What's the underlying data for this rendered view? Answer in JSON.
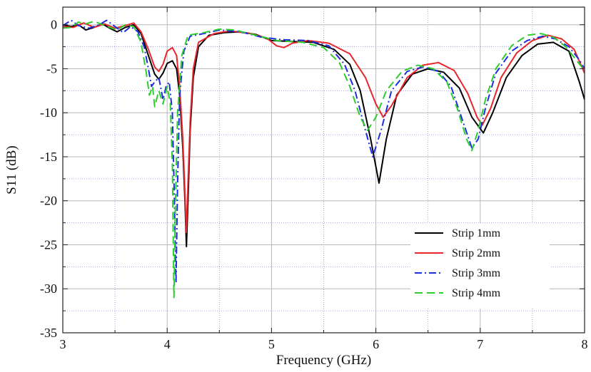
{
  "chart_data": {
    "type": "line",
    "xlabel": "Frequency (GHz)",
    "ylabel": "S11 (dB)",
    "xlim": [
      3,
      8
    ],
    "ylim": [
      -35,
      2
    ],
    "x_ticks": [
      3,
      4,
      5,
      6,
      7,
      8
    ],
    "y_ticks": [
      0,
      -5,
      -10,
      -15,
      -20,
      -25,
      -30,
      -35
    ],
    "x_minor_ticks": [
      3.5,
      4.5,
      5.5,
      6.5,
      7.5
    ],
    "y_minor_ticks": [
      -2.5,
      -7.5,
      -12.5,
      -17.5,
      -22.5,
      -27.5,
      -32.5
    ],
    "grid": true,
    "legend_position": "bottom-right",
    "series": [
      {
        "name": "Strip 1mm",
        "color": "#000000",
        "dash": "solid",
        "points": [
          [
            3.0,
            0
          ],
          [
            3.08,
            -0.2
          ],
          [
            3.15,
            0
          ],
          [
            3.22,
            -0.6
          ],
          [
            3.3,
            -0.3
          ],
          [
            3.38,
            0.1
          ],
          [
            3.45,
            -0.4
          ],
          [
            3.52,
            -0.8
          ],
          [
            3.6,
            -0.3
          ],
          [
            3.68,
            0
          ],
          [
            3.75,
            -1.0
          ],
          [
            3.82,
            -3.5
          ],
          [
            3.88,
            -5.6
          ],
          [
            3.92,
            -6.2
          ],
          [
            3.96,
            -5.5
          ],
          [
            4.0,
            -4.4
          ],
          [
            4.05,
            -4.1
          ],
          [
            4.09,
            -5.0
          ],
          [
            4.12,
            -8.0
          ],
          [
            4.15,
            -14
          ],
          [
            4.17,
            -20
          ],
          [
            4.185,
            -25.2
          ],
          [
            4.2,
            -20
          ],
          [
            4.22,
            -12
          ],
          [
            4.25,
            -6
          ],
          [
            4.3,
            -2.5
          ],
          [
            4.4,
            -1.2
          ],
          [
            4.55,
            -0.9
          ],
          [
            4.7,
            -0.8
          ],
          [
            4.85,
            -1.1
          ],
          [
            5.0,
            -1.8
          ],
          [
            5.2,
            -1.9
          ],
          [
            5.4,
            -2.0
          ],
          [
            5.6,
            -2.8
          ],
          [
            5.75,
            -4.5
          ],
          [
            5.85,
            -7.5
          ],
          [
            5.95,
            -13
          ],
          [
            6.03,
            -18.0
          ],
          [
            6.1,
            -13
          ],
          [
            6.2,
            -8.0
          ],
          [
            6.35,
            -5.6
          ],
          [
            6.5,
            -5.0
          ],
          [
            6.65,
            -5.4
          ],
          [
            6.8,
            -7.2
          ],
          [
            6.92,
            -10.5
          ],
          [
            7.03,
            -12.3
          ],
          [
            7.12,
            -10.0
          ],
          [
            7.25,
            -6.0
          ],
          [
            7.4,
            -3.5
          ],
          [
            7.55,
            -2.2
          ],
          [
            7.7,
            -2.0
          ],
          [
            7.85,
            -3.0
          ],
          [
            7.95,
            -6.5
          ],
          [
            8.0,
            -8.5
          ]
        ]
      },
      {
        "name": "Strip 2mm",
        "color": "#e8262b",
        "dash": "solid",
        "points": [
          [
            3.0,
            -0.2
          ],
          [
            3.1,
            -0.3
          ],
          [
            3.2,
            0.2
          ],
          [
            3.3,
            -0.3
          ],
          [
            3.4,
            0.1
          ],
          [
            3.5,
            -0.4
          ],
          [
            3.6,
            -0.1
          ],
          [
            3.68,
            0.2
          ],
          [
            3.75,
            -0.8
          ],
          [
            3.82,
            -2.8
          ],
          [
            3.88,
            -4.8
          ],
          [
            3.92,
            -5.3
          ],
          [
            3.96,
            -4.5
          ],
          [
            4.0,
            -3.0
          ],
          [
            4.05,
            -2.6
          ],
          [
            4.09,
            -3.5
          ],
          [
            4.12,
            -7.0
          ],
          [
            4.15,
            -13
          ],
          [
            4.17,
            -19
          ],
          [
            4.183,
            -23.6
          ],
          [
            4.2,
            -18
          ],
          [
            4.22,
            -11
          ],
          [
            4.25,
            -5
          ],
          [
            4.3,
            -2.0
          ],
          [
            4.45,
            -1.0
          ],
          [
            4.6,
            -0.7
          ],
          [
            4.8,
            -1.0
          ],
          [
            4.95,
            -1.5
          ],
          [
            5.05,
            -2.4
          ],
          [
            5.12,
            -2.6
          ],
          [
            5.2,
            -2.1
          ],
          [
            5.35,
            -1.8
          ],
          [
            5.55,
            -2.1
          ],
          [
            5.75,
            -3.3
          ],
          [
            5.9,
            -6.0
          ],
          [
            6.0,
            -9.0
          ],
          [
            6.07,
            -10.5
          ],
          [
            6.15,
            -9.2
          ],
          [
            6.3,
            -6.0
          ],
          [
            6.45,
            -4.6
          ],
          [
            6.6,
            -4.3
          ],
          [
            6.75,
            -5.2
          ],
          [
            6.88,
            -7.8
          ],
          [
            6.97,
            -10.5
          ],
          [
            7.02,
            -11.4
          ],
          [
            7.1,
            -9.5
          ],
          [
            7.2,
            -6.0
          ],
          [
            7.35,
            -3.2
          ],
          [
            7.5,
            -1.8
          ],
          [
            7.65,
            -1.2
          ],
          [
            7.78,
            -1.6
          ],
          [
            7.9,
            -2.8
          ],
          [
            8.0,
            -5.5
          ]
        ]
      },
      {
        "name": "Strip 3mm",
        "color": "#1c2fe0",
        "dash": "dashdot",
        "points": [
          [
            3.0,
            -0.1
          ],
          [
            3.08,
            0.5
          ],
          [
            3.15,
            -0.1
          ],
          [
            3.25,
            -0.4
          ],
          [
            3.35,
            0
          ],
          [
            3.42,
            0.5
          ],
          [
            3.5,
            -0.2
          ],
          [
            3.58,
            -0.9
          ],
          [
            3.65,
            -0.2
          ],
          [
            3.72,
            -0.8
          ],
          [
            3.78,
            -2.5
          ],
          [
            3.82,
            -5.0
          ],
          [
            3.85,
            -7.0
          ],
          [
            3.88,
            -6.5
          ],
          [
            3.92,
            -6.0
          ],
          [
            3.96,
            -8.5
          ],
          [
            3.99,
            -7.0
          ],
          [
            4.02,
            -6.5
          ],
          [
            4.05,
            -10.0
          ],
          [
            4.07,
            -20.0
          ],
          [
            4.085,
            -29.3
          ],
          [
            4.1,
            -18.0
          ],
          [
            4.12,
            -8.0
          ],
          [
            4.16,
            -3.0
          ],
          [
            4.22,
            -1.3
          ],
          [
            4.35,
            -1.0
          ],
          [
            4.5,
            -0.6
          ],
          [
            4.7,
            -0.8
          ],
          [
            4.9,
            -1.4
          ],
          [
            5.1,
            -1.7
          ],
          [
            5.35,
            -1.8
          ],
          [
            5.55,
            -2.4
          ],
          [
            5.7,
            -4.5
          ],
          [
            5.8,
            -7.5
          ],
          [
            5.9,
            -12.0
          ],
          [
            5.97,
            -15.0
          ],
          [
            6.05,
            -12.0
          ],
          [
            6.15,
            -7.5
          ],
          [
            6.3,
            -5.3
          ],
          [
            6.45,
            -4.8
          ],
          [
            6.6,
            -5.3
          ],
          [
            6.72,
            -7.0
          ],
          [
            6.82,
            -10.5
          ],
          [
            6.92,
            -14.0
          ],
          [
            6.98,
            -13.0
          ],
          [
            7.05,
            -9.5
          ],
          [
            7.15,
            -5.5
          ],
          [
            7.3,
            -3.0
          ],
          [
            7.45,
            -1.8
          ],
          [
            7.6,
            -1.3
          ],
          [
            7.72,
            -1.6
          ],
          [
            7.85,
            -2.5
          ],
          [
            7.95,
            -4.0
          ],
          [
            8.0,
            -5.0
          ]
        ]
      },
      {
        "name": "Strip 4mm",
        "color": "#2ecc2e",
        "dash": "dashed",
        "points": [
          [
            3.0,
            -0.4
          ],
          [
            3.08,
            -0.3
          ],
          [
            3.15,
            0.3
          ],
          [
            3.22,
            0.1
          ],
          [
            3.3,
            0.4
          ],
          [
            3.38,
            0
          ],
          [
            3.45,
            -0.3
          ],
          [
            3.52,
            -0.6
          ],
          [
            3.6,
            0
          ],
          [
            3.68,
            -0.2
          ],
          [
            3.75,
            -2.0
          ],
          [
            3.8,
            -5.5
          ],
          [
            3.83,
            -8.0
          ],
          [
            3.86,
            -7.0
          ],
          [
            3.88,
            -9.3
          ],
          [
            3.92,
            -7.5
          ],
          [
            3.96,
            -9.0
          ],
          [
            4.0,
            -7.0
          ],
          [
            4.03,
            -9.0
          ],
          [
            4.05,
            -16.0
          ],
          [
            4.065,
            -31.0
          ],
          [
            4.08,
            -20.0
          ],
          [
            4.1,
            -10.0
          ],
          [
            4.14,
            -3.5
          ],
          [
            4.2,
            -1.2
          ],
          [
            4.35,
            -0.9
          ],
          [
            4.5,
            -0.5
          ],
          [
            4.65,
            -0.6
          ],
          [
            4.85,
            -1.2
          ],
          [
            5.05,
            -1.8
          ],
          [
            5.3,
            -2.0
          ],
          [
            5.5,
            -2.6
          ],
          [
            5.65,
            -4.3
          ],
          [
            5.75,
            -7.0
          ],
          [
            5.85,
            -10.5
          ],
          [
            5.92,
            -12.0
          ],
          [
            6.0,
            -10.5
          ],
          [
            6.1,
            -7.5
          ],
          [
            6.25,
            -5.3
          ],
          [
            6.4,
            -4.6
          ],
          [
            6.55,
            -5.0
          ],
          [
            6.68,
            -6.5
          ],
          [
            6.78,
            -9.5
          ],
          [
            6.87,
            -13.0
          ],
          [
            6.92,
            -14.3
          ],
          [
            6.98,
            -12.0
          ],
          [
            7.05,
            -8.5
          ],
          [
            7.15,
            -5.0
          ],
          [
            7.3,
            -2.4
          ],
          [
            7.45,
            -1.2
          ],
          [
            7.58,
            -1.0
          ],
          [
            7.7,
            -1.4
          ],
          [
            7.82,
            -2.5
          ],
          [
            7.92,
            -4.0
          ],
          [
            8.0,
            -5.2
          ]
        ]
      }
    ]
  }
}
